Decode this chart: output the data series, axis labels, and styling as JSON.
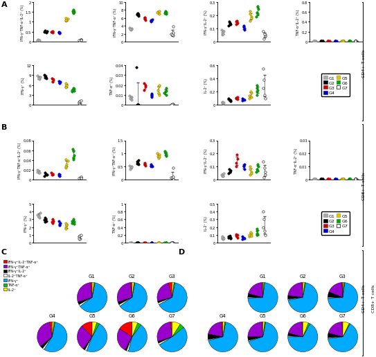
{
  "group_colors": {
    "G1": "#aaaaaa",
    "G2": "#000000",
    "G3": "#cc0000",
    "G4": "#0000cc",
    "G5": "#ddcc00",
    "G6": "#00aa00",
    "G7": "#ffffff"
  },
  "group_edgecolors": {
    "G1": "#888888",
    "G2": "#000000",
    "G3": "#cc0000",
    "G4": "#0000cc",
    "G5": "#997700",
    "G6": "#007700",
    "G7": "#000000"
  },
  "panel_A": {
    "plot1": {
      "ylabel": "IFN-γ⁺TNF-α⁺IL-2⁺ (%)",
      "ylim": [
        0,
        2.0
      ],
      "yticks": [
        0,
        0.5,
        1.0,
        1.5,
        2.0
      ],
      "data": {
        "G1": [
          0.07,
          0.09,
          0.08,
          0.06,
          0.08
        ],
        "G2": [
          0.45,
          0.5,
          0.55,
          0.48,
          0.52
        ],
        "G3": [
          0.45,
          0.52,
          0.48,
          0.5
        ],
        "G4": [
          0.42,
          0.46,
          0.44,
          0.48
        ],
        "G5": [
          1.05,
          1.1,
          1.15,
          1.2,
          1.08
        ],
        "G6": [
          1.45,
          1.52,
          1.6,
          1.55,
          1.48
        ],
        "G7": [
          0.05,
          0.08,
          0.12,
          0.1,
          0.07
        ]
      }
    },
    "plot2": {
      "ylabel": "IFN-γ⁺TNF-α⁺ (%)",
      "ylim": [
        0,
        10
      ],
      "yticks": [
        0,
        2,
        4,
        6,
        8,
        10
      ],
      "data": {
        "G1": [
          3.0,
          3.3,
          3.5,
          3.2,
          3.1
        ],
        "G2": [
          6.5,
          7.0,
          6.8,
          7.2,
          6.9
        ],
        "G3": [
          5.5,
          6.0,
          5.8,
          6.2
        ],
        "G4": [
          5.0,
          5.4,
          5.2,
          5.6
        ],
        "G5": [
          7.2,
          7.6,
          7.4,
          7.8,
          7.0
        ],
        "G6": [
          7.0,
          7.5,
          7.2,
          7.8,
          7.3
        ],
        "G7": [
          1.5,
          2.0,
          1.8,
          2.2,
          3.8
        ]
      }
    },
    "plot3": {
      "ylabel": "IFN-γ⁺IL-2⁺ (%)",
      "ylim": [
        0,
        0.3
      ],
      "yticks": [
        0,
        0.1,
        0.2,
        0.3
      ],
      "data": {
        "G1": [
          0.05,
          0.07,
          0.08,
          0.09,
          0.06
        ],
        "G2": [
          0.12,
          0.14,
          0.13,
          0.15,
          0.13
        ],
        "G3": [
          0.13,
          0.15,
          0.14,
          0.16
        ],
        "G4": [
          0.09,
          0.11,
          0.1,
          0.12
        ],
        "G5": [
          0.16,
          0.19,
          0.21,
          0.23,
          0.18
        ],
        "G6": [
          0.19,
          0.22,
          0.25,
          0.27,
          0.21
        ],
        "G7": [
          0.02,
          0.04,
          0.05,
          0.06,
          0.08
        ]
      }
    },
    "plot4": {
      "ylabel": "TNF-α⁺IL-2⁺ (%)",
      "ylim": [
        0,
        0.8
      ],
      "yticks": [
        0,
        0.2,
        0.4,
        0.6,
        0.8
      ],
      "data": {
        "G1": [
          0.01,
          0.01,
          0.01,
          0.01,
          0.01
        ],
        "G2": [
          0.01,
          0.01,
          0.01,
          0.01,
          0.01
        ],
        "G3": [
          0.01,
          0.01,
          0.01,
          0.01
        ],
        "G4": [
          0.01,
          0.01,
          0.01,
          0.01
        ],
        "G5": [
          0.01,
          0.01,
          0.01,
          0.01,
          0.01
        ],
        "G6": [
          0.01,
          0.01,
          0.01,
          0.01,
          0.01
        ],
        "G7": [
          0.01,
          0.01,
          0.01,
          0.01,
          0.01
        ]
      }
    },
    "plot5": {
      "ylabel": "IFN-γ⁺ (%)",
      "ylim": [
        0,
        12
      ],
      "yticks": [
        0,
        3,
        6,
        9,
        12
      ],
      "data": {
        "G1": [
          7.8,
          8.2,
          8.5,
          8.8,
          8.0
        ],
        "G2": [
          8.0,
          8.5,
          8.8,
          9.0,
          8.3
        ],
        "G3": [
          7.0,
          7.5,
          7.8,
          8.0
        ],
        "G4": [
          6.5,
          7.0,
          7.2,
          6.8
        ],
        "G5": [
          5.5,
          6.0,
          6.5,
          5.8,
          5.2
        ],
        "G6": [
          4.0,
          4.5,
          5.0,
          4.8,
          4.2
        ],
        "G7": [
          0.3,
          0.5,
          0.8,
          1.0,
          1.2
        ]
      }
    },
    "plot6": {
      "ylabel": "TNF-α⁺ (%)",
      "ylim": [
        0,
        0.04
      ],
      "yticks": [
        0,
        0.01,
        0.02,
        0.03,
        0.04
      ],
      "data": {
        "G1": [
          0.005,
          0.008,
          0.007,
          0.006,
          0.009
        ],
        "G2": [
          0.0,
          0.0,
          0.038,
          0.0,
          0.0
        ],
        "G3": [
          0.018,
          0.015,
          0.02,
          0.022
        ],
        "G4": [
          0.008,
          0.01,
          0.009,
          0.011
        ],
        "G5": [
          0.01,
          0.015,
          0.018,
          0.02,
          0.012
        ],
        "G6": [
          0.01,
          0.013,
          0.012,
          0.017,
          0.014
        ],
        "G7": [
          0.0,
          0.001,
          0.0,
          0.001,
          0.0
        ]
      }
    },
    "plot7": {
      "ylabel": "IL-2⁺ (%)",
      "ylim": [
        0,
        0.6
      ],
      "yticks": [
        0,
        0.2,
        0.4,
        0.6
      ],
      "data": {
        "G1": [
          0.02,
          0.03,
          0.04,
          0.03,
          0.03
        ],
        "G2": [
          0.05,
          0.08,
          0.1,
          0.07,
          0.06
        ],
        "G3": [
          0.08,
          0.1,
          0.12,
          0.11
        ],
        "G4": [
          0.06,
          0.08,
          0.09,
          0.07
        ],
        "G5": [
          0.1,
          0.14,
          0.18,
          0.2,
          0.12
        ],
        "G6": [
          0.15,
          0.2,
          0.25,
          0.3,
          0.22
        ],
        "G7": [
          0.1,
          0.15,
          0.25,
          0.38,
          0.55
        ]
      }
    }
  },
  "panel_B": {
    "plot1": {
      "ylabel": "IFN-γ⁺TNF-α⁺IL-2⁺ (%)",
      "ylim": [
        0,
        0.08
      ],
      "yticks": [
        0,
        0.02,
        0.04,
        0.06,
        0.08
      ],
      "data": {
        "G1": [
          0.015,
          0.018,
          0.02,
          0.016,
          0.014
        ],
        "G2": [
          0.01,
          0.012,
          0.015,
          0.008,
          0.01
        ],
        "G3": [
          0.01,
          0.012,
          0.014,
          0.011
        ],
        "G4": [
          0.008,
          0.01,
          0.012,
          0.009
        ],
        "G5": [
          0.025,
          0.032,
          0.038,
          0.042,
          0.028
        ],
        "G6": [
          0.042,
          0.05,
          0.058,
          0.062,
          0.046
        ],
        "G7": [
          0.003,
          0.004,
          0.005,
          0.006,
          0.004
        ]
      }
    },
    "plot2": {
      "ylabel": "IFN-γ⁺TNF-α⁺ (%)",
      "ylim": [
        0,
        1.5
      ],
      "yticks": [
        0,
        0.5,
        1.0,
        1.5
      ],
      "data": {
        "G1": [
          0.45,
          0.5,
          0.55,
          0.48,
          0.42
        ],
        "G2": [
          0.6,
          0.7,
          0.75,
          0.65,
          0.62
        ],
        "G3": [
          0.55,
          0.6,
          0.65,
          0.58
        ],
        "G4": [
          0.5,
          0.55,
          0.58,
          0.52
        ],
        "G5": [
          0.82,
          0.9,
          1.0,
          0.95,
          0.88
        ],
        "G6": [
          0.92,
          1.0,
          1.1,
          1.05,
          0.95
        ],
        "G7": [
          0.05,
          0.08,
          0.1,
          0.12,
          0.45
        ]
      }
    },
    "plot3": {
      "ylabel": "IFN-γ⁺IL-2⁺ (%)",
      "ylim": [
        0,
        0.3
      ],
      "yticks": [
        0,
        0.1,
        0.2,
        0.3
      ],
      "data": {
        "G1": [
          0.03,
          0.04,
          0.05,
          0.04,
          0.03
        ],
        "G2": [
          0.05,
          0.06,
          0.07,
          0.08,
          0.06
        ],
        "G3": [
          0.1,
          0.13,
          0.16,
          0.19
        ],
        "G4": [
          0.08,
          0.1,
          0.12,
          0.11
        ],
        "G5": [
          0.04,
          0.06,
          0.08,
          0.1,
          0.05
        ],
        "G6": [
          0.06,
          0.08,
          0.1,
          0.12,
          0.07
        ],
        "G7": [
          0.02,
          0.04,
          0.06,
          0.09,
          0.14
        ]
      }
    },
    "plot4": {
      "ylabel": "TNF-α⁺IL-2⁺ (%)",
      "ylim": [
        0,
        0.03
      ],
      "yticks": [
        0,
        0.01,
        0.02,
        0.03
      ],
      "data": {
        "G1": [
          0.001,
          0.001,
          0.001,
          0.001,
          0.001
        ],
        "G2": [
          0.001,
          0.001,
          0.001,
          0.001,
          0.001
        ],
        "G3": [
          0.001,
          0.001,
          0.001,
          0.001
        ],
        "G4": [
          0.001,
          0.001,
          0.001,
          0.001
        ],
        "G5": [
          0.001,
          0.001,
          0.001,
          0.001,
          0.001
        ],
        "G6": [
          0.001,
          0.001,
          0.001,
          0.001,
          0.001
        ],
        "G7": [
          0.001,
          0.001,
          0.001,
          0.001,
          0.001
        ]
      }
    },
    "plot5": {
      "ylabel": "IFN-γ⁺ (%)",
      "ylim": [
        0,
        5
      ],
      "yticks": [
        0,
        1,
        2,
        3,
        4,
        5
      ],
      "data": {
        "G1": [
          3.2,
          3.5,
          3.8,
          3.6,
          3.3
        ],
        "G2": [
          2.8,
          3.0,
          3.2,
          2.9,
          2.7
        ],
        "G3": [
          2.5,
          2.8,
          3.0,
          2.7
        ],
        "G4": [
          2.2,
          2.5,
          2.8,
          2.4
        ],
        "G5": [
          2.0,
          2.2,
          2.5,
          2.3,
          1.8
        ],
        "G6": [
          2.5,
          2.8,
          3.0,
          2.7,
          2.4
        ],
        "G7": [
          0.5,
          0.6,
          0.8,
          0.9,
          1.0
        ]
      }
    },
    "plot6": {
      "ylabel": "TNF-α⁺ (%)",
      "ylim": [
        0,
        1.0
      ],
      "yticks": [
        0,
        0.2,
        0.4,
        0.6,
        0.8,
        1.0
      ],
      "data": {
        "G1": [
          0.003,
          0.003,
          0.003,
          0.003,
          0.003
        ],
        "G2": [
          0.003,
          0.003,
          0.003,
          0.003,
          0.003
        ],
        "G3": [
          0.003,
          0.003,
          0.003,
          0.003
        ],
        "G4": [
          0.003,
          0.003,
          0.003,
          0.003
        ],
        "G5": [
          0.003,
          0.003,
          0.003,
          0.003,
          0.003
        ],
        "G6": [
          0.003,
          0.003,
          0.003,
          0.003,
          0.003
        ],
        "G7": [
          0.003,
          0.003,
          0.003,
          0.003,
          0.003
        ]
      }
    },
    "plot7": {
      "ylabel": "IL-2⁺ (%)",
      "ylim": [
        0,
        0.5
      ],
      "yticks": [
        0,
        0.1,
        0.2,
        0.3,
        0.4,
        0.5
      ],
      "data": {
        "G1": [
          0.05,
          0.06,
          0.08,
          0.07,
          0.06
        ],
        "G2": [
          0.06,
          0.07,
          0.08,
          0.09,
          0.07
        ],
        "G3": [
          0.07,
          0.09,
          0.1,
          0.11
        ],
        "G4": [
          0.05,
          0.07,
          0.08,
          0.06
        ],
        "G5": [
          0.08,
          0.1,
          0.12,
          0.14,
          0.09
        ],
        "G6": [
          0.1,
          0.12,
          0.15,
          0.18,
          0.11
        ],
        "G7": [
          0.1,
          0.15,
          0.2,
          0.3,
          0.4
        ]
      }
    }
  },
  "pie_colors": [
    "#ff0000",
    "#9900cc",
    "#000000",
    "#ffffff",
    "#00aaff",
    "#00cc00",
    "#ffff00"
  ],
  "pie_C": {
    "G1": [
      0.02,
      0.28,
      0.03,
      0.02,
      0.62,
      0.01,
      0.02
    ],
    "G2": [
      0.02,
      0.28,
      0.03,
      0.02,
      0.62,
      0.01,
      0.02
    ],
    "G3": [
      0.04,
      0.25,
      0.02,
      0.02,
      0.64,
      0.01,
      0.02
    ],
    "G4": [
      0.03,
      0.33,
      0.03,
      0.02,
      0.56,
      0.01,
      0.02
    ],
    "G5": [
      0.12,
      0.28,
      0.02,
      0.02,
      0.48,
      0.03,
      0.05
    ],
    "G6": [
      0.16,
      0.26,
      0.02,
      0.02,
      0.44,
      0.04,
      0.06
    ],
    "G7": [
      0.02,
      0.28,
      0.02,
      0.02,
      0.52,
      0.05,
      0.09
    ]
  },
  "pie_D": {
    "G1": [
      0.01,
      0.2,
      0.04,
      0.01,
      0.72,
      0.01,
      0.01
    ],
    "G2": [
      0.01,
      0.22,
      0.04,
      0.01,
      0.69,
      0.01,
      0.02
    ],
    "G3": [
      0.01,
      0.18,
      0.06,
      0.01,
      0.72,
      0.01,
      0.01
    ],
    "G4": [
      0.02,
      0.2,
      0.06,
      0.01,
      0.68,
      0.01,
      0.02
    ],
    "G5": [
      0.01,
      0.24,
      0.04,
      0.01,
      0.67,
      0.01,
      0.02
    ],
    "G6": [
      0.01,
      0.2,
      0.03,
      0.01,
      0.67,
      0.02,
      0.06
    ],
    "G7": [
      0.01,
      0.2,
      0.05,
      0.01,
      0.65,
      0.01,
      0.07
    ]
  },
  "legend_labels": [
    "G1",
    "G2",
    "G3",
    "G4",
    "G5",
    "G6",
    "G7"
  ],
  "pie_legend_labels": [
    "IFN-γ⁺IL-2⁺TNF-α⁺",
    "IFN-γ⁺TNF-α⁺",
    "IFN-γ⁺IL-2⁺",
    "IL-2⁺TNF-α⁺",
    "IFN-γ⁺",
    "TNF-α⁺",
    "IL-2⁺"
  ]
}
